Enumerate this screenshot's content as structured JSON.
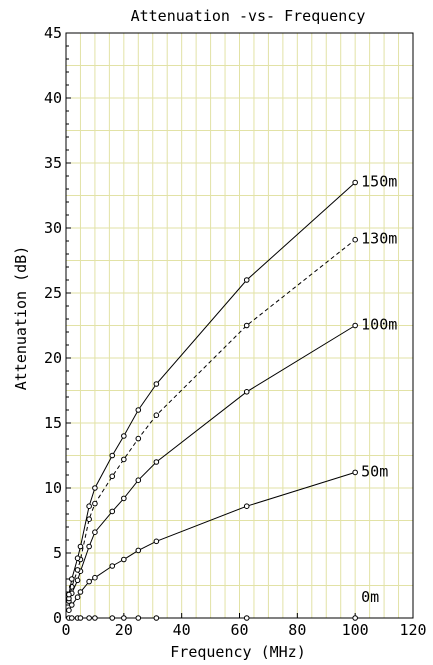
{
  "chart_data": {
    "type": "line",
    "title": "Attenuation -vs- Frequency",
    "xlabel": "Frequency (MHz)",
    "ylabel": "Attenuation (dB)",
    "xlim": [
      0,
      120
    ],
    "ylim": [
      0,
      45
    ],
    "x_ticks": [
      "0",
      "20",
      "40",
      "60",
      "80",
      "100",
      "120"
    ],
    "y_ticks": [
      "0",
      "5",
      "10",
      "15",
      "20",
      "25",
      "30",
      "35",
      "40",
      "45"
    ],
    "grid": true,
    "x": [
      1,
      2,
      4,
      5,
      8,
      10,
      16,
      20,
      25,
      31.25,
      62.5,
      100
    ],
    "series": [
      {
        "name": "0m",
        "style": "solid",
        "values": [
          0,
          0,
          0,
          0,
          0,
          0,
          0,
          0,
          0,
          0,
          0,
          0
        ]
      },
      {
        "name": "50m",
        "style": "solid",
        "values": [
          0.6,
          1.0,
          1.6,
          2.0,
          2.8,
          3.1,
          4.0,
          4.5,
          5.2,
          5.9,
          8.6,
          11.2
        ]
      },
      {
        "name": "100m",
        "style": "solid",
        "values": [
          1.3,
          1.9,
          2.9,
          3.6,
          5.5,
          6.6,
          8.2,
          9.2,
          10.6,
          12.0,
          17.4,
          22.5
        ]
      },
      {
        "name": "130m",
        "style": "dashed",
        "values": [
          1.5,
          2.4,
          3.7,
          4.5,
          7.6,
          8.8,
          10.9,
          12.2,
          13.8,
          15.6,
          22.5,
          29.1
        ]
      },
      {
        "name": "150m",
        "style": "solid",
        "values": [
          1.8,
          3.0,
          4.6,
          5.5,
          8.6,
          10.0,
          12.5,
          14.0,
          16.0,
          18.0,
          26.0,
          33.5
        ]
      }
    ]
  }
}
